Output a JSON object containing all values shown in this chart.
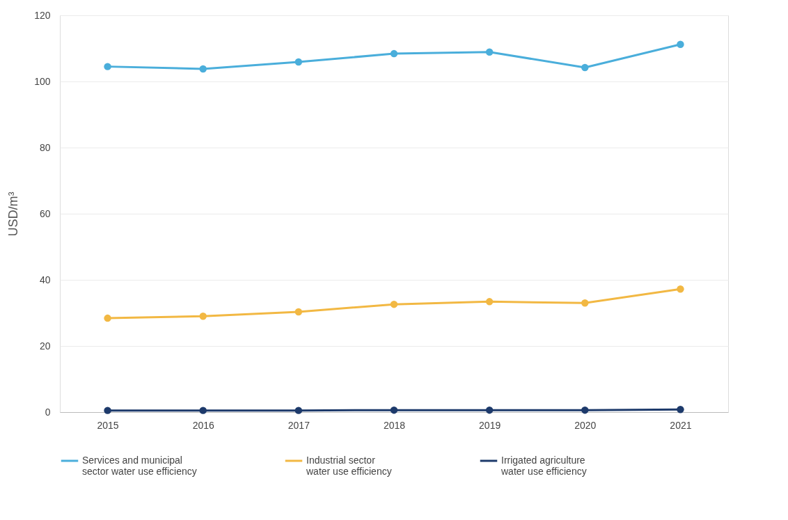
{
  "chart_data": {
    "type": "line",
    "ylabel": "USD/m³",
    "categories": [
      "2015",
      "2016",
      "2017",
      "2018",
      "2019",
      "2020",
      "2021"
    ],
    "series": [
      {
        "name": "Services and municipal\nsector water use efficiency",
        "color": "#4aaedb",
        "values": [
          104.5,
          103.8,
          105.9,
          108.4,
          108.9,
          104.2,
          111.2
        ]
      },
      {
        "name": "Industrial sector\nwater use efficiency",
        "color": "#f2b843",
        "values": [
          28.4,
          29.0,
          30.3,
          32.6,
          33.4,
          33.0,
          37.2
        ]
      },
      {
        "name": "Irrigated agriculture\nwater use efficiency",
        "color": "#1d3a6b",
        "values": [
          0.5,
          0.5,
          0.5,
          0.6,
          0.6,
          0.6,
          0.8
        ]
      }
    ],
    "ylim": [
      0,
      120
    ],
    "yticks": [
      0,
      20,
      40,
      60,
      80,
      100,
      120
    ],
    "grid": "y",
    "legend": "bottom",
    "marker": "circle",
    "line_style": "solid"
  }
}
